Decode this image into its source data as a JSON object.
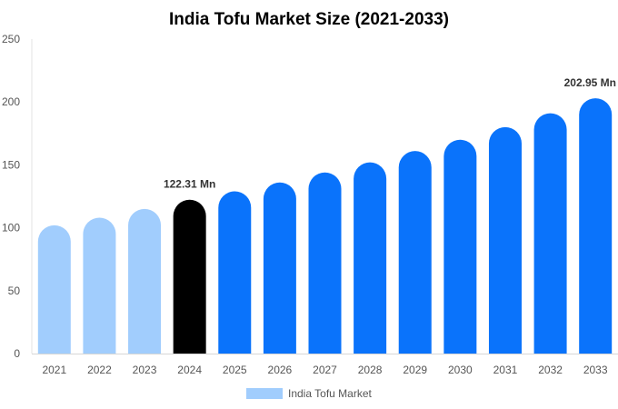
{
  "chart_data": {
    "type": "bar",
    "title": "India Tofu Market Size (2021-2033)",
    "xlabel": "",
    "ylabel": "",
    "categories": [
      "2021",
      "2022",
      "2023",
      "2024",
      "2025",
      "2026",
      "2027",
      "2028",
      "2029",
      "2030",
      "2031",
      "2032",
      "2033"
    ],
    "series": [
      {
        "name": "India Tofu Market",
        "values": [
          102,
          108,
          115,
          122.31,
          129,
          136,
          144,
          152,
          161,
          170,
          180,
          191,
          202.95
        ]
      }
    ],
    "ylim": [
      0,
      250
    ],
    "yticks": [
      0,
      50,
      100,
      150,
      200,
      250
    ],
    "data_labels": [
      {
        "index": 3,
        "text": "122.31 Mn"
      },
      {
        "index": 12,
        "text": "202.95 Mn"
      }
    ],
    "colors": {
      "historical": "#a1cdfd",
      "base_year": "#000000",
      "forecast": "#0a73fb",
      "legend": "#a1cdfd"
    },
    "grid": false,
    "legend_position": "bottom"
  }
}
